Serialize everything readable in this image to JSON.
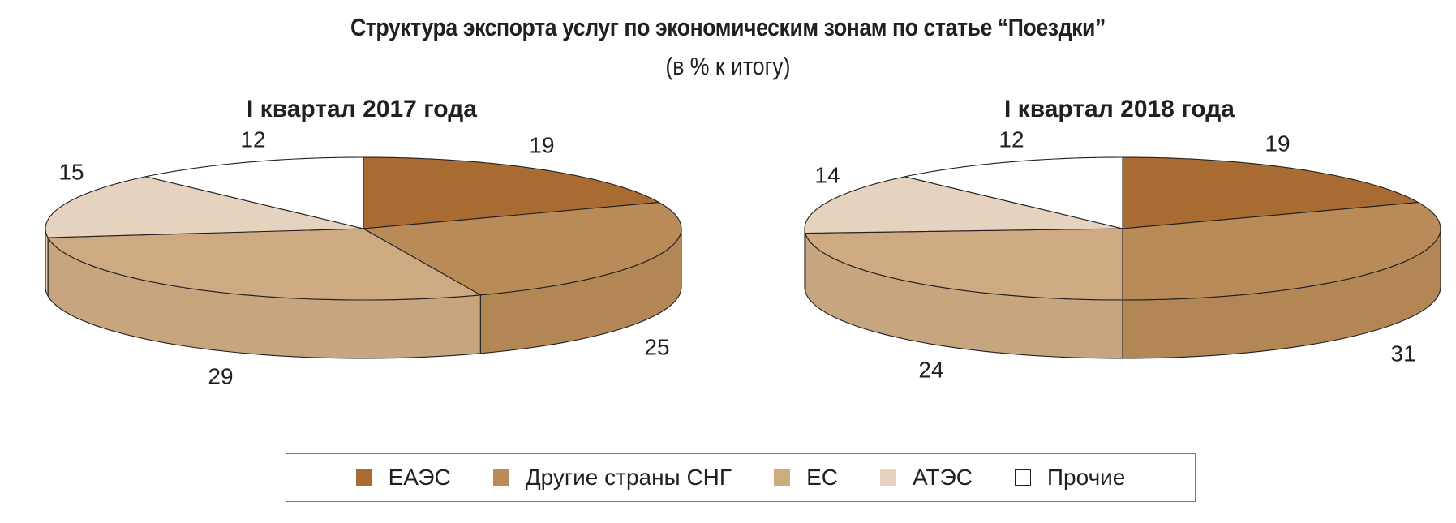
{
  "title": "Структура экспорта услуг по экономическим зонам по статье “Поездки”",
  "subtitle": "(в % к итогу)",
  "chart_data": [
    {
      "type": "pie",
      "title": "I квартал 2017 года",
      "categories": [
        "ЕАЭС",
        "Другие страны СНГ",
        "ЕС",
        "АТЭС",
        "Прочие"
      ],
      "values": [
        19,
        25,
        29,
        15,
        12
      ]
    },
    {
      "type": "pie",
      "title": "I квартал 2018 года",
      "categories": [
        "ЕАЭС",
        "Другие страны СНГ",
        "ЕС",
        "АТЭС",
        "Прочие"
      ],
      "values": [
        19,
        31,
        24,
        14,
        12
      ]
    }
  ],
  "legend": [
    {
      "label": "ЕАЭС",
      "color": "#a86b31"
    },
    {
      "label": "Другие страны СНГ",
      "color": "#b98b58"
    },
    {
      "label": "ЕС",
      "color": "#cdaa82"
    },
    {
      "label": "АТЭС",
      "color": "#e6d3bf"
    },
    {
      "label": "Прочие",
      "color": "#ffffff"
    }
  ]
}
